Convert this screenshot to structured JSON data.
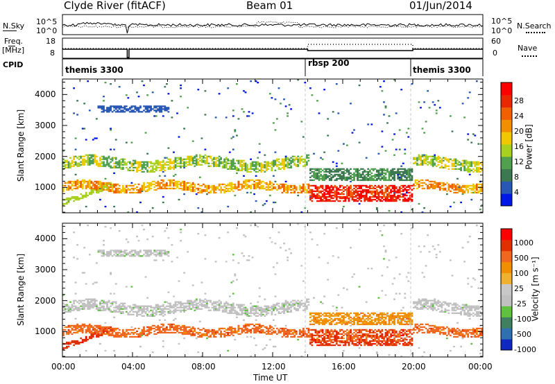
{
  "header": {
    "title": "Clyde River (fitACF)",
    "beam": "Beam 01",
    "date": "01/Jun/2014"
  },
  "top_panels": {
    "nsky_label": "N.Sky",
    "nsky_ticks": [
      "10^5",
      "10^0"
    ],
    "nsearch_label": "N.Search",
    "nsearch_ticks": [
      "10^5",
      "10^0"
    ],
    "freq_label": "Freq.",
    "freq_unit": "[MHz]",
    "freq_ticks": [
      "18",
      "8"
    ],
    "nave_label": "Nave",
    "nave_ticks": [
      "60",
      "0"
    ],
    "cpid_label": "CPID",
    "cpid_segments": [
      {
        "name": "themis 3300",
        "start_hour": 0,
        "end_hour": 14
      },
      {
        "name": "rbsp 200",
        "start_hour": 14,
        "end_hour": 20
      },
      {
        "name": "themis 3300",
        "start_hour": 20,
        "end_hour": 24
      }
    ]
  },
  "colors": {
    "power_scale": [
      "#0018e6",
      "#2858b4",
      "#3c7850",
      "#50a050",
      "#a8d020",
      "#f0c800",
      "#f09000",
      "#f06000",
      "#e82800",
      "#ff0000"
    ],
    "velocity_scale": [
      "#1028c0",
      "#3070b0",
      "#408060",
      "#60c040",
      "#c0c0c0",
      "#c8c8c8",
      "#f0b030",
      "#f09000",
      "#f06820",
      "#e03000",
      "#ff0000"
    ],
    "missing": "#ffffff"
  },
  "chart_data": [
    {
      "type": "heatmap",
      "name": "power",
      "ylabel": "Slant Range [km]",
      "ylim": [
        180,
        4500
      ],
      "xlim_hours": [
        0,
        24
      ],
      "x_ticks": [
        "00:00",
        "04:00",
        "08:00",
        "12:00",
        "16:00",
        "20:00",
        "00:00"
      ],
      "y_ticks": [
        "1000",
        "2000",
        "3000",
        "4000"
      ],
      "colorbar_label": "Power [dB]",
      "colorbar_ticks": [
        "28",
        "24",
        "20",
        "16",
        "12",
        "8",
        "4"
      ]
    },
    {
      "type": "heatmap",
      "name": "velocity",
      "ylabel": "Slant Range [km]",
      "ylim": [
        180,
        4500
      ],
      "xlim_hours": [
        0,
        24
      ],
      "xlabel": "Time UT",
      "x_ticks": [
        "00:00",
        "04:00",
        "08:00",
        "12:00",
        "16:00",
        "20:00",
        "00:00"
      ],
      "y_ticks": [
        "1000",
        "2000",
        "3000",
        "4000"
      ],
      "colorbar_label": "Velocity [m s⁻¹]",
      "colorbar_ticks": [
        "1000",
        "500",
        "100",
        "25",
        "-25",
        "-100",
        "-500",
        "-1000"
      ]
    }
  ]
}
